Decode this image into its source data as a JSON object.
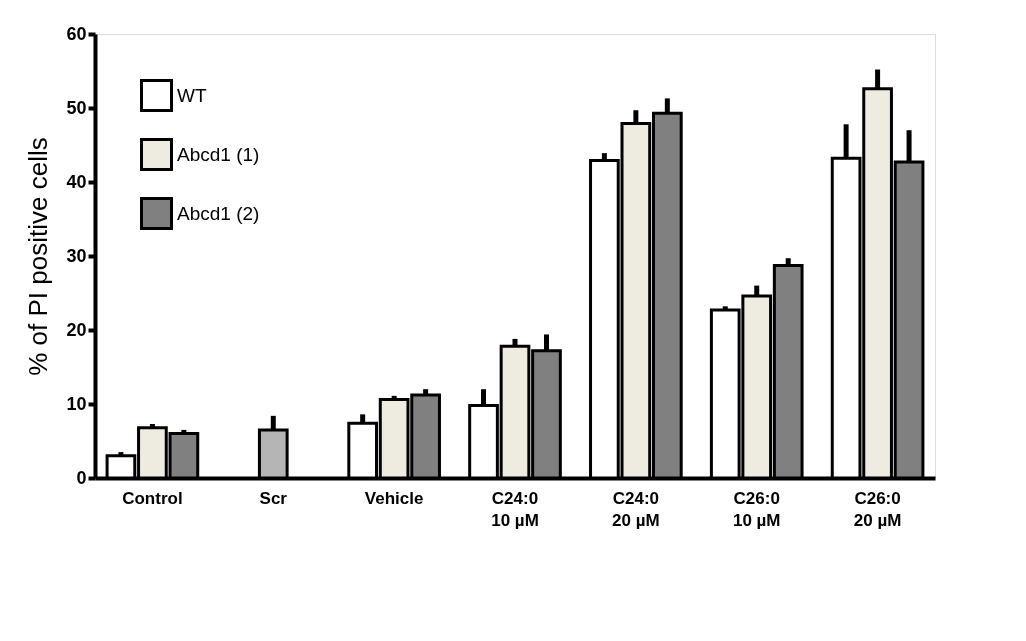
{
  "chart_data": {
    "type": "bar",
    "ylabel": "% of PI positive cells",
    "categories": [
      "Control",
      "Scr",
      "Vehicle",
      "C24:0\n10 µM",
      "C24:0\n20 µM",
      "C26:0\n10 µM",
      "C26:0\n20 µM"
    ],
    "series": [
      {
        "name": "WT",
        "color": "#ffffff",
        "values": [
          3.0,
          null,
          7.4,
          9.8,
          42.9,
          22.7,
          43.2
        ],
        "errors": [
          [
            3.0,
            3.5
          ],
          null,
          [
            7.4,
            8.6
          ],
          [
            9.8,
            12.0
          ],
          [
            42.9,
            43.9
          ],
          [
            22.7,
            23.2
          ],
          [
            43.2,
            47.8
          ]
        ]
      },
      {
        "name": "Abcd1 (1)",
        "color": "#eeebe0",
        "values": [
          6.8,
          null,
          10.6,
          17.8,
          47.9,
          24.6,
          52.6
        ],
        "errors": [
          [
            6.8,
            7.3
          ],
          null,
          [
            10.6,
            11.1
          ],
          [
            17.8,
            18.8
          ],
          [
            47.9,
            49.7
          ],
          [
            24.6,
            26.0
          ],
          [
            52.6,
            55.2
          ]
        ]
      },
      {
        "name": "Abcd1 (2)",
        "color": "#808080",
        "values": [
          6.0,
          null,
          11.2,
          17.2,
          49.3,
          28.7,
          42.7
        ],
        "errors": [
          [
            6.0,
            6.5
          ],
          null,
          [
            11.2,
            12.0
          ],
          [
            17.2,
            19.4
          ],
          [
            49.3,
            51.3
          ],
          [
            28.7,
            29.7
          ],
          [
            42.7,
            47.0
          ]
        ]
      },
      {
        "color": "#b5b5b5",
        "values": [
          null,
          6.5,
          null,
          null,
          null,
          null,
          null
        ],
        "errors": [
          null,
          [
            6.5,
            8.4
          ],
          null,
          null,
          null,
          null,
          null
        ]
      }
    ],
    "ylim": [
      0,
      60
    ],
    "yticks": [
      0,
      10,
      20,
      30,
      40,
      50,
      60
    ],
    "grid": false,
    "legend": "top left"
  }
}
